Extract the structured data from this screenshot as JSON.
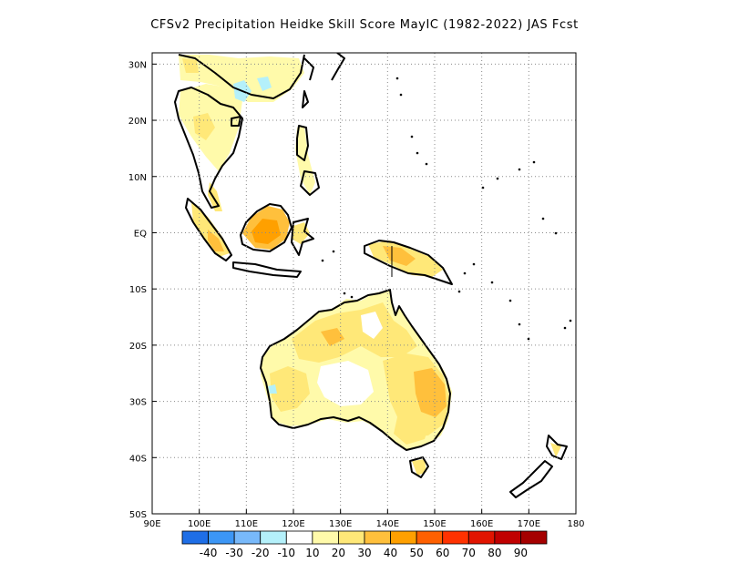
{
  "title": "CFSv2  Precipitation Heidke Skill Score MayIC (1982-2022) JAS Fcst",
  "map": {
    "lon_range": [
      90,
      180
    ],
    "lat_range": [
      -50,
      32
    ],
    "lon_ticks": [
      {
        "value": 90,
        "label": "90E"
      },
      {
        "value": 100,
        "label": "100E"
      },
      {
        "value": 110,
        "label": "110E"
      },
      {
        "value": 120,
        "label": "120E"
      },
      {
        "value": 130,
        "label": "130E"
      },
      {
        "value": 140,
        "label": "140E"
      },
      {
        "value": 150,
        "label": "150E"
      },
      {
        "value": 160,
        "label": "160E"
      },
      {
        "value": 170,
        "label": "170E"
      },
      {
        "value": 180,
        "label": "180"
      }
    ],
    "lat_ticks": [
      {
        "value": 30,
        "label": "30N"
      },
      {
        "value": 20,
        "label": "20N"
      },
      {
        "value": 10,
        "label": "10N"
      },
      {
        "value": 0,
        "label": "EQ"
      },
      {
        "value": -10,
        "label": "10S"
      },
      {
        "value": -20,
        "label": "20S"
      },
      {
        "value": -30,
        "label": "30S"
      },
      {
        "value": -40,
        "label": "40S"
      },
      {
        "value": -50,
        "label": "50S"
      }
    ],
    "grid": "dotted"
  },
  "colorbar": {
    "colors": [
      "#1e6ee6",
      "#3c96f5",
      "#78b9fa",
      "#b4f0fa",
      "#ffffff",
      "#fffaaa",
      "#ffe878",
      "#ffc03c",
      "#ffa000",
      "#ff6000",
      "#ff3200",
      "#e11400",
      "#c00000",
      "#a50000"
    ],
    "labels": [
      "-40",
      "-30",
      "-20",
      "-10",
      "10",
      "20",
      "30",
      "40",
      "50",
      "60",
      "70",
      "80",
      "90"
    ]
  }
}
